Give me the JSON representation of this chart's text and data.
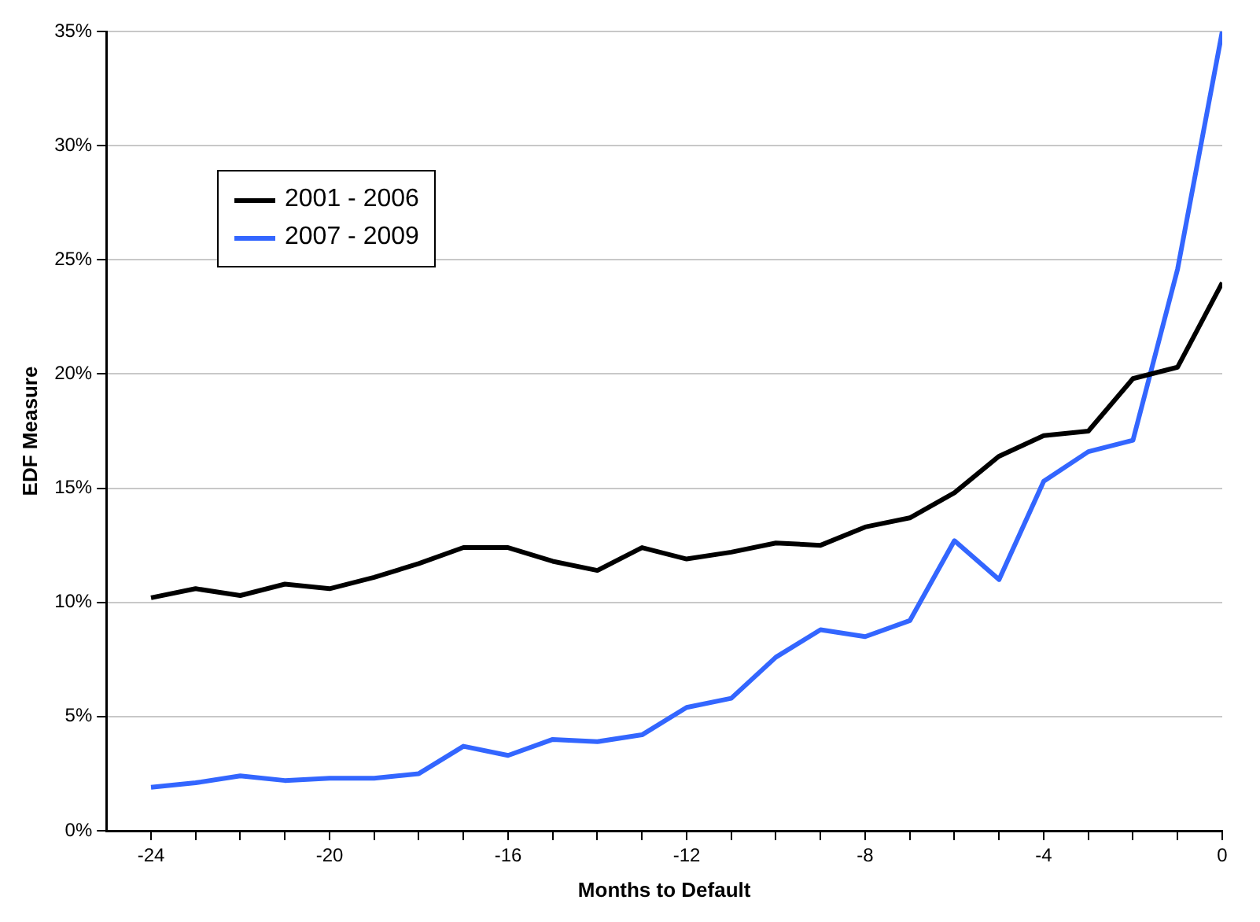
{
  "chart_data": {
    "type": "line",
    "xlabel": "Months to Default",
    "ylabel": "EDF Measure",
    "x": [
      -24,
      -23,
      -22,
      -21,
      -20,
      -19,
      -18,
      -17,
      -16,
      -15,
      -14,
      -13,
      -12,
      -11,
      -10,
      -9,
      -8,
      -7,
      -6,
      -5,
      -4,
      -3,
      -2,
      -1,
      0
    ],
    "series": [
      {
        "name": "2001 - 2006",
        "color": "#000000",
        "values": [
          10.2,
          10.6,
          10.3,
          10.8,
          10.6,
          11.1,
          11.7,
          12.4,
          12.4,
          11.8,
          11.4,
          12.4,
          11.9,
          12.2,
          12.6,
          12.5,
          13.3,
          13.7,
          14.8,
          16.4,
          17.3,
          17.5,
          19.8,
          20.3,
          24.0
        ]
      },
      {
        "name": "2007 - 2009",
        "color": "#3366ff",
        "values": [
          1.9,
          2.1,
          2.4,
          2.2,
          2.3,
          2.3,
          2.5,
          3.7,
          3.3,
          4.0,
          3.9,
          4.2,
          5.4,
          5.8,
          7.6,
          8.8,
          8.5,
          9.2,
          12.7,
          11.0,
          15.3,
          16.6,
          17.1,
          24.6,
          35.0
        ]
      }
    ],
    "xlim": [
      -25,
      0
    ],
    "xticks": [
      {
        "value": -24,
        "label": "-24"
      },
      {
        "value": -23,
        "label": null
      },
      {
        "value": -22,
        "label": null
      },
      {
        "value": -21,
        "label": null
      },
      {
        "value": -20,
        "label": "-20"
      },
      {
        "value": -19,
        "label": null
      },
      {
        "value": -18,
        "label": null
      },
      {
        "value": -17,
        "label": null
      },
      {
        "value": -16,
        "label": "-16"
      },
      {
        "value": -15,
        "label": null
      },
      {
        "value": -14,
        "label": null
      },
      {
        "value": -13,
        "label": null
      },
      {
        "value": -12,
        "label": "-12"
      },
      {
        "value": -11,
        "label": null
      },
      {
        "value": -10,
        "label": null
      },
      {
        "value": -9,
        "label": null
      },
      {
        "value": -8,
        "label": "-8"
      },
      {
        "value": -7,
        "label": null
      },
      {
        "value": -6,
        "label": null
      },
      {
        "value": -5,
        "label": null
      },
      {
        "value": -4,
        "label": "-4"
      },
      {
        "value": -3,
        "label": null
      },
      {
        "value": -2,
        "label": null
      },
      {
        "value": -1,
        "label": null
      },
      {
        "value": 0,
        "label": "0"
      }
    ],
    "ylim": [
      0,
      35
    ],
    "yticks": [
      {
        "value": 0,
        "label": "0%"
      },
      {
        "value": 5,
        "label": "5%"
      },
      {
        "value": 10,
        "label": "10%"
      },
      {
        "value": 15,
        "label": "15%"
      },
      {
        "value": 20,
        "label": "20%"
      },
      {
        "value": 25,
        "label": "25%"
      },
      {
        "value": 30,
        "label": "30%"
      },
      {
        "value": 35,
        "label": "35%"
      }
    ],
    "grid": "y",
    "legend": "top left",
    "marker": "none",
    "line_style": "solid"
  }
}
